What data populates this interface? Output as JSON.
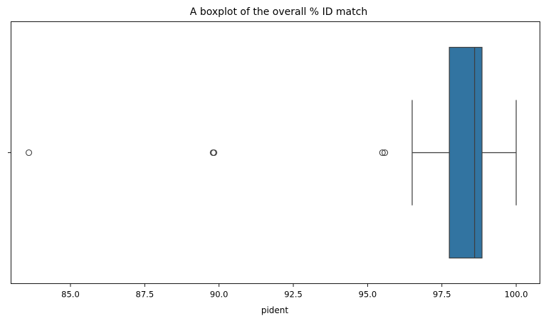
{
  "chart_data": {
    "type": "boxplot",
    "title": "A boxplot of the overall % ID match",
    "xlabel": "pident",
    "ylabel": "",
    "xlim": [
      83.0,
      100.8
    ],
    "xticks": [
      85.0,
      87.5,
      90.0,
      92.5,
      95.0,
      97.5,
      100.0
    ],
    "orientation": "horizontal",
    "box": {
      "whisker_low": 96.5,
      "q1": 97.75,
      "median": 98.6,
      "q3": 98.85,
      "whisker_high": 100.0
    },
    "outliers": [
      83.6,
      89.8,
      89.83,
      95.5,
      95.58
    ],
    "colors": {
      "box_fill": "#3274a1",
      "line": "#3d3d3d"
    },
    "grid": false
  }
}
